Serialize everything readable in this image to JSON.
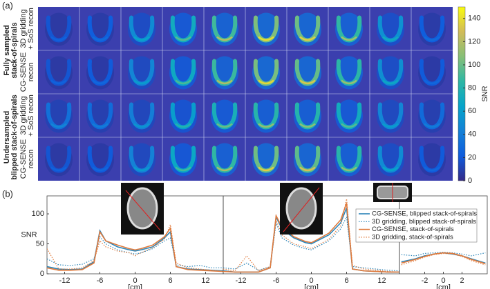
{
  "chart_data": [
    {
      "type": "image_grid",
      "panel_label": "(a)",
      "group_labels": [
        [
          "Fully sampled",
          "stack-of-spirals"
        ],
        [
          "Undersampled",
          "blipped stack-of-spirals"
        ]
      ],
      "row_labels": [
        [
          "3D gridding",
          "+ SoS recon"
        ],
        [
          "CG-SENSE",
          "recon"
        ],
        [
          "3D gridding",
          "+ SoS recon"
        ],
        [
          "CG-SENSE",
          "recon"
        ]
      ],
      "values": [
        [
          25,
          30,
          65,
          95,
          120,
          140,
          135,
          115,
          70,
          30
        ],
        [
          25,
          28,
          60,
          92,
          118,
          138,
          132,
          112,
          68,
          28
        ],
        [
          45,
          40,
          55,
          80,
          100,
          110,
          108,
          95,
          60,
          40
        ],
        [
          25,
          28,
          58,
          90,
          115,
          135,
          130,
          110,
          65,
          28
        ]
      ],
      "colorbar_label": "SNR",
      "clim": [
        0,
        150
      ],
      "cticks": [
        0,
        20,
        40,
        60,
        80,
        100,
        120,
        140
      ],
      "colormap": [
        "#352a87",
        "#0f5cdd",
        "#1481d6",
        "#06a4ca",
        "#2eb7a4",
        "#87bf77",
        "#d1bb59",
        "#f9fb0e"
      ]
    },
    {
      "type": "line",
      "panel_label": "(b)",
      "ylabel": "SNR",
      "xlabel": "[cm]",
      "x": [
        -15,
        -13,
        -11,
        -9,
        -7,
        -6,
        -5,
        -3,
        -1,
        0,
        1,
        3,
        5,
        6,
        7,
        9,
        11,
        13,
        15
      ],
      "xlim": [
        -15,
        15
      ],
      "xticks": [
        -12,
        -6,
        0,
        6,
        12
      ],
      "ylim": [
        0,
        130
      ],
      "yticks": [
        0,
        50,
        100
      ],
      "series": [
        {
          "color": "#2a84b8",
          "dash": false,
          "values": [
            12,
            8,
            7,
            8,
            20,
            72,
            55,
            45,
            40,
            38,
            40,
            45,
            60,
            70,
            12,
            8,
            7,
            6,
            5
          ]
        },
        {
          "color": "#2a84b8",
          "dash": true,
          "values": [
            25,
            15,
            14,
            16,
            25,
            62,
            50,
            40,
            35,
            33,
            35,
            42,
            55,
            60,
            15,
            12,
            14,
            10,
            10
          ]
        },
        {
          "color": "#e07a3c",
          "dash": false,
          "values": [
            10,
            6,
            6,
            7,
            18,
            70,
            55,
            48,
            42,
            40,
            42,
            48,
            62,
            76,
            12,
            7,
            6,
            5,
            4
          ]
        },
        {
          "color": "#e07a3c",
          "dash": true,
          "values": [
            42,
            8,
            8,
            10,
            22,
            55,
            45,
            38,
            35,
            30,
            35,
            44,
            58,
            82,
            18,
            10,
            8,
            6,
            4
          ]
        }
      ]
    },
    {
      "type": "line",
      "xlabel": "[cm]",
      "x": [
        -15,
        -13,
        -11,
        -9,
        -7,
        -6,
        -5,
        -3,
        -1,
        0,
        1,
        3,
        5,
        6,
        7,
        9,
        11,
        13,
        15
      ],
      "xlim": [
        -15,
        15
      ],
      "xticks": [
        -12,
        -6,
        0,
        6,
        12
      ],
      "ylim": [
        0,
        130
      ],
      "series": [
        {
          "color": "#2a84b8",
          "dash": false,
          "values": [
            5,
            3,
            3,
            3,
            10,
            95,
            75,
            60,
            52,
            50,
            55,
            65,
            85,
            110,
            8,
            5,
            4,
            3,
            3
          ]
        },
        {
          "color": "#2a84b8",
          "dash": true,
          "values": [
            10,
            8,
            18,
            6,
            12,
            85,
            60,
            48,
            42,
            40,
            45,
            55,
            75,
            95,
            12,
            10,
            8,
            6,
            5
          ]
        },
        {
          "color": "#e07a3c",
          "dash": false,
          "values": [
            4,
            3,
            3,
            3,
            10,
            97,
            78,
            62,
            54,
            52,
            57,
            68,
            90,
            118,
            8,
            5,
            4,
            3,
            3
          ]
        },
        {
          "color": "#e07a3c",
          "dash": true,
          "values": [
            8,
            5,
            30,
            5,
            12,
            90,
            65,
            50,
            45,
            42,
            47,
            58,
            80,
            125,
            14,
            8,
            6,
            4,
            3
          ]
        }
      ]
    },
    {
      "type": "line",
      "xlabel": "[cm]",
      "x": [
        -4.5,
        -3,
        -2,
        -1,
        0,
        1,
        2,
        3,
        4.5
      ],
      "xlim": [
        -4.7,
        4.7
      ],
      "xticks": [
        -2,
        0,
        2
      ],
      "ylim": [
        0,
        130
      ],
      "legend": "top-left",
      "series": [
        {
          "name": "CG-SENSE, blipped stack-of-spirals",
          "color": "#2a84b8",
          "dash": false,
          "values": [
            20,
            25,
            30,
            33,
            35,
            33,
            30,
            25,
            18
          ]
        },
        {
          "name": "3D gridding, blipped stack-of-spirals",
          "color": "#2a84b8",
          "dash": true,
          "values": [
            32,
            30,
            34,
            35,
            36,
            35,
            33,
            30,
            35
          ]
        },
        {
          "name": "CG-SENSE, stack-of-spirals",
          "color": "#e07a3c",
          "dash": false,
          "values": [
            18,
            24,
            29,
            33,
            35,
            34,
            30,
            24,
            17
          ]
        },
        {
          "name": "3D gridding, stack-of-spirals",
          "color": "#e07a3c",
          "dash": true,
          "values": [
            15,
            22,
            28,
            32,
            34,
            33,
            29,
            22,
            15
          ]
        }
      ]
    }
  ]
}
